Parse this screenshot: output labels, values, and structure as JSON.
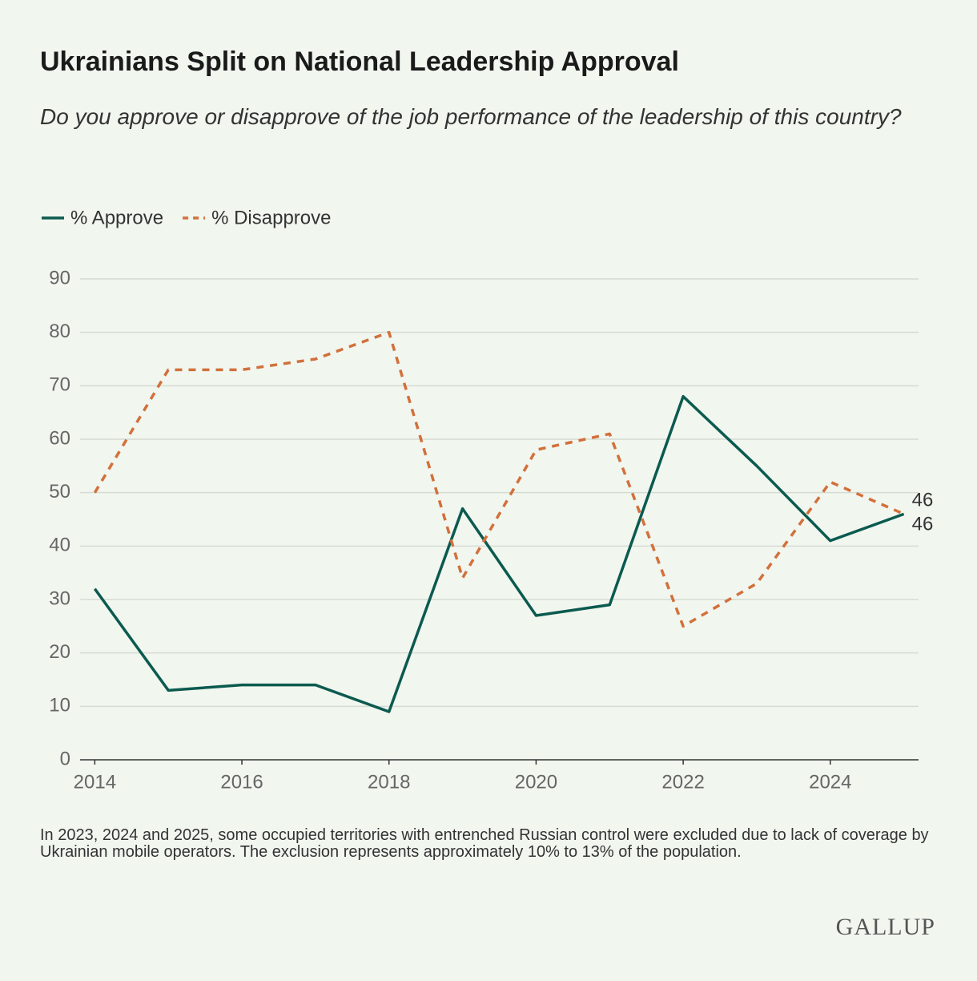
{
  "chart_data": {
    "type": "line",
    "title": "Ukrainians Split on National Leadership Approval",
    "subtitle": "Do you approve or disapprove of the job performance of the leadership of this country?",
    "x": [
      2014,
      2015,
      2016,
      2017,
      2018,
      2019,
      2020,
      2021,
      2022,
      2023,
      2024,
      2025
    ],
    "series": [
      {
        "name": "% Approve",
        "color": "#0b5a4f",
        "dash": false,
        "values": [
          32,
          13,
          14,
          14,
          9,
          47,
          27,
          29,
          68,
          55,
          41,
          46
        ]
      },
      {
        "name": "% Disapprove",
        "color": "#d2703b",
        "dash": true,
        "values": [
          50,
          73,
          73,
          75,
          80,
          34,
          58,
          61,
          25,
          33,
          52,
          46
        ]
      }
    ],
    "xlim": [
      2013.8,
      2025.2
    ],
    "xticks": [
      2014,
      2016,
      2018,
      2020,
      2022,
      2024
    ],
    "ylim": [
      0,
      90
    ],
    "yticks": [
      0,
      10,
      20,
      30,
      40,
      50,
      60,
      70,
      80,
      90
    ],
    "grid": true,
    "legend": "top-left",
    "note": "In 2023, 2024 and 2025, some occupied territories with entrenched Russian control were excluded due to lack of coverage by Ukrainian mobile operators. The exclusion represents approximately 10% to 13% of the population.",
    "source": "GALLUP"
  }
}
